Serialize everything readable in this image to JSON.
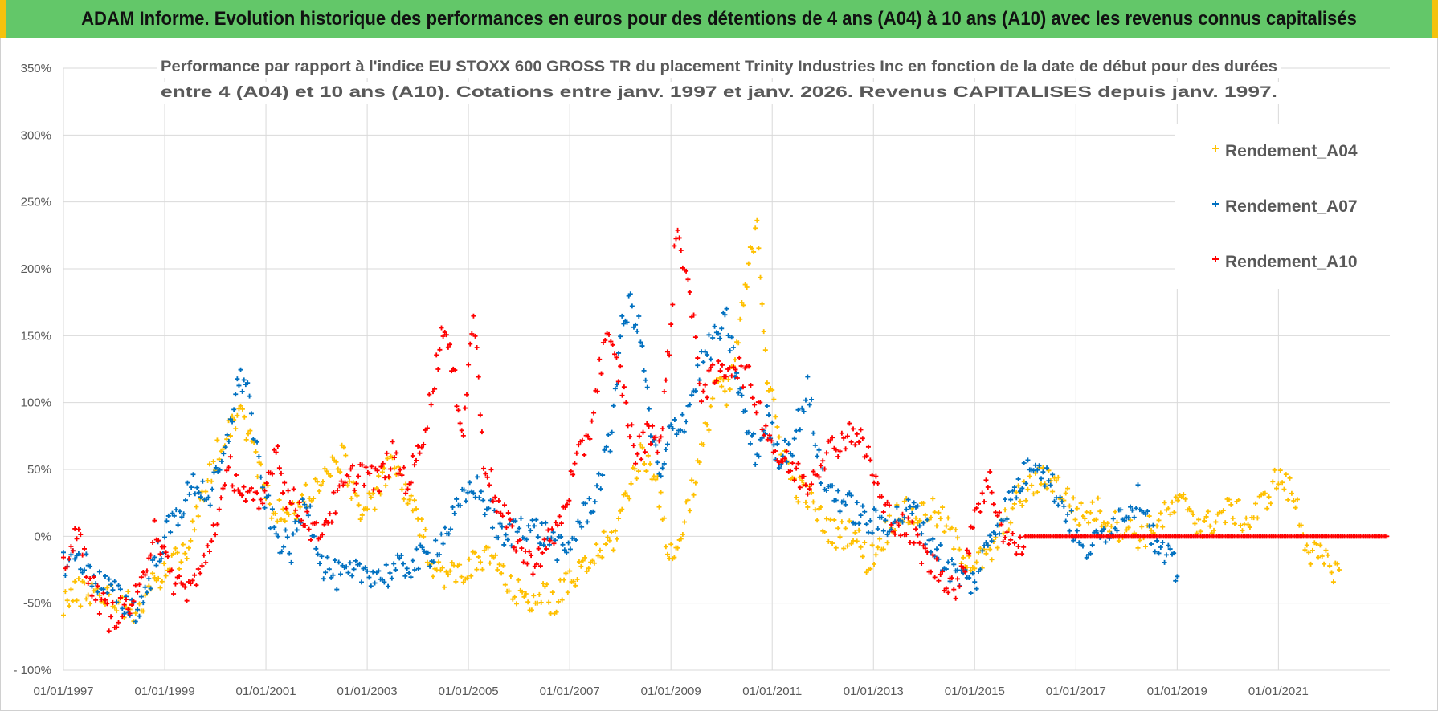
{
  "banner": {
    "title": "ADAM Informe. Evolution historique des performances en euros pour des détentions de 4 ans (A04) à 10 ans (A10) avec les revenus connus capitalisés"
  },
  "colors": {
    "banner_bg": "#63c769",
    "banner_edge": "#f4c20d",
    "A04": "#ffc000",
    "A07": "#0070c0",
    "A10": "#ff0000",
    "grid": "#d9d9d9",
    "text": "#595959"
  },
  "chart_data": {
    "type": "scatter",
    "marker": "+",
    "title_lines": [
      "Performance par rapport à l'indice EU STOXX 600 GROSS TR  du placement Trinity Industries Inc en fonction de la date de début pour des durées",
      "entre 4 (A04) et 10 ans (A10).  Cotations entre janv. 1997 et janv. 2026. Revenus CAPITALISES depuis janv. 1997."
    ],
    "xlim": [
      1997.0,
      2023.2
    ],
    "ylim": [
      -100,
      350
    ],
    "x_ticks": [
      1997,
      1999,
      2001,
      2003,
      2005,
      2007,
      2009,
      2011,
      2013,
      2015,
      2017,
      2019,
      2021
    ],
    "x_tick_labels": [
      "01/01/1997",
      "01/01/1999",
      "01/01/2001",
      "01/01/2003",
      "01/01/2005",
      "01/01/2007",
      "01/01/2009",
      "01/01/2011",
      "01/01/2013",
      "01/01/2015",
      "01/01/2017",
      "01/01/2019",
      "01/01/2021"
    ],
    "y_ticks": [
      -100,
      -50,
      0,
      50,
      100,
      150,
      200,
      250,
      300,
      350
    ],
    "y_tick_labels": [
      "- 100%",
      "-50%",
      "0%",
      "50%",
      "100%",
      "150%",
      "200%",
      "250%",
      "300%",
      "350%"
    ],
    "legend": [
      "Rendement_A04",
      "Rendement_A07",
      "Rendement_A10"
    ],
    "legend_position": "top-right",
    "series": [
      {
        "name": "Rendement_A04",
        "color": "#ffc000",
        "x": [
          1997.0,
          1997.3,
          1997.6,
          1997.9,
          1998.2,
          1998.5,
          1998.8,
          1999.1,
          1999.4,
          1999.7,
          2000.0,
          2000.3,
          2000.5,
          2000.8,
          2001.0,
          2001.3,
          2001.6,
          2001.9,
          2002.2,
          2002.5,
          2002.8,
          2003.0,
          2003.3,
          2003.5,
          2003.8,
          2004.0,
          2004.3,
          2004.6,
          2004.9,
          2005.2,
          2005.5,
          2005.8,
          2006.1,
          2006.4,
          2006.7,
          2007.0,
          2007.3,
          2007.6,
          2007.9,
          2008.1,
          2008.4,
          2008.7,
          2008.9,
          2009.1,
          2009.3,
          2009.6,
          2009.9,
          2010.1,
          2010.3,
          2010.5,
          2010.7,
          2010.9,
          2011.1,
          2011.4,
          2011.7,
          2012.0,
          2012.3,
          2012.6,
          2012.9,
          2013.2,
          2013.5,
          2013.8,
          2014.1,
          2014.4,
          2014.7,
          2015.0,
          2015.3,
          2015.6,
          2015.9,
          2016.2,
          2016.5,
          2016.8,
          2017.1,
          2017.4,
          2017.7,
          2018.0,
          2018.3,
          2018.6,
          2018.9,
          2019.2,
          2019.5,
          2019.8,
          2020.1,
          2020.4,
          2020.7,
          2021.0,
          2021.3,
          2021.6,
          2021.9,
          2022.2
        ],
        "y": [
          -48,
          -42,
          -40,
          -45,
          -50,
          -55,
          -35,
          -20,
          -10,
          20,
          60,
          85,
          95,
          60,
          30,
          15,
          20,
          35,
          45,
          60,
          25,
          20,
          40,
          55,
          30,
          10,
          -20,
          -30,
          -25,
          -20,
          -15,
          -40,
          -45,
          -45,
          -48,
          -35,
          -25,
          -10,
          0,
          30,
          60,
          50,
          -5,
          -15,
          20,
          60,
          120,
          100,
          140,
          190,
          240,
          120,
          80,
          40,
          30,
          10,
          0,
          5,
          -20,
          0,
          20,
          15,
          20,
          10,
          -10,
          -20,
          -15,
          10,
          30,
          40,
          45,
          30,
          15,
          20,
          10,
          5,
          0,
          10,
          20,
          25,
          5,
          15,
          20,
          10,
          25,
          45,
          30,
          -10,
          -20,
          -25
        ]
      },
      {
        "name": "Rendement_A07",
        "color": "#0070c0",
        "x": [
          1997.0,
          1997.3,
          1997.6,
          1997.9,
          1998.2,
          1998.5,
          1998.8,
          1999.0,
          1999.3,
          1999.6,
          1999.9,
          2000.2,
          2000.4,
          2000.6,
          2000.9,
          2001.2,
          2001.5,
          2001.8,
          2002.1,
          2002.4,
          2002.7,
          2003.0,
          2003.3,
          2003.6,
          2003.9,
          2004.2,
          2004.5,
          2004.8,
          2005.1,
          2005.4,
          2005.7,
          2006.0,
          2006.3,
          2006.6,
          2006.9,
          2007.2,
          2007.5,
          2007.8,
          2008.0,
          2008.2,
          2008.4,
          2008.6,
          2008.8,
          2009.0,
          2009.3,
          2009.6,
          2009.9,
          2010.1,
          2010.3,
          2010.5,
          2010.7,
          2010.9,
          2011.1,
          2011.4,
          2011.7,
          2012.0,
          2012.3,
          2012.6,
          2012.9,
          2013.2,
          2013.5,
          2013.8,
          2014.1,
          2014.4,
          2014.7,
          2015.0,
          2015.3,
          2015.6,
          2015.9,
          2016.2,
          2016.5,
          2016.8,
          2017.1,
          2017.4,
          2017.7,
          2018.0,
          2018.3,
          2018.6,
          2018.9,
          2019.0
        ],
        "y": [
          -20,
          -15,
          -30,
          -40,
          -50,
          -55,
          -20,
          0,
          20,
          40,
          30,
          60,
          110,
          120,
          40,
          0,
          -10,
          30,
          -20,
          -30,
          -30,
          -25,
          -30,
          -25,
          -20,
          -15,
          0,
          20,
          40,
          20,
          -5,
          10,
          5,
          0,
          -15,
          10,
          30,
          70,
          150,
          175,
          150,
          80,
          40,
          80,
          90,
          130,
          150,
          160,
          120,
          80,
          60,
          90,
          60,
          70,
          110,
          40,
          30,
          20,
          10,
          10,
          15,
          20,
          0,
          -20,
          -30,
          -35,
          0,
          20,
          40,
          60,
          40,
          20,
          -10,
          -5,
          10,
          20,
          30,
          -10,
          -20,
          -30
        ]
      },
      {
        "name": "Rendement_A10",
        "color": "#ff0000",
        "x": [
          1997.0,
          1997.3,
          1997.6,
          1997.9,
          1998.2,
          1998.5,
          1998.8,
          1999.1,
          1999.4,
          1999.7,
          2000.0,
          2000.3,
          2000.6,
          2000.9,
          2001.2,
          2001.4,
          2001.7,
          2002.0,
          2002.3,
          2002.6,
          2002.9,
          2003.2,
          2003.5,
          2003.8,
          2004.0,
          2004.3,
          2004.5,
          2004.7,
          2004.9,
          2005.1,
          2005.3,
          2005.6,
          2005.9,
          2006.2,
          2006.5,
          2006.8,
          2007.1,
          2007.4,
          2007.7,
          2008.0,
          2008.3,
          2008.6,
          2008.8,
          2009.0,
          2009.1,
          2009.3,
          2009.6,
          2009.9,
          2010.2,
          2010.5,
          2010.8,
          2011.1,
          2011.4,
          2011.7,
          2012.0,
          2012.3,
          2012.6,
          2012.9,
          2013.2,
          2013.5,
          2013.8,
          2014.1,
          2014.4,
          2014.7,
          2015.0,
          2015.3,
          2015.6,
          2015.9,
          2016.0
        ],
        "y": [
          -20,
          0,
          -40,
          -60,
          -55,
          -45,
          10,
          -30,
          -40,
          -30,
          10,
          50,
          30,
          20,
          70,
          30,
          20,
          0,
          20,
          40,
          50,
          40,
          60,
          40,
          60,
          110,
          160,
          120,
          80,
          170,
          60,
          20,
          0,
          -20,
          -10,
          10,
          50,
          80,
          150,
          120,
          60,
          80,
          70,
          160,
          230,
          200,
          110,
          120,
          130,
          120,
          90,
          60,
          50,
          40,
          60,
          70,
          80,
          60,
          20,
          10,
          0,
          -20,
          -30,
          -40,
          20,
          40,
          0,
          -10,
          0
        ]
      }
    ]
  }
}
